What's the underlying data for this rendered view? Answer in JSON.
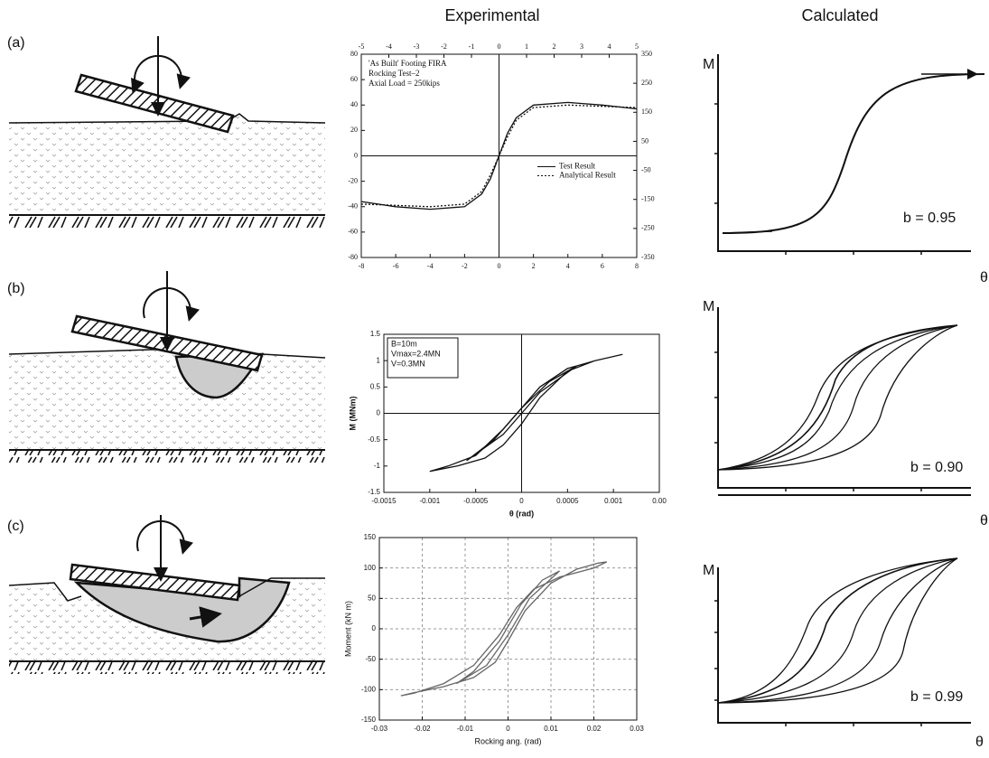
{
  "headers": {
    "experimental": "Experimental",
    "calculated": "Calculated"
  },
  "rows": [
    "(a)",
    "(b)",
    "(c)"
  ],
  "calculated": [
    {
      "y_label": "M",
      "x_label": "θ",
      "annotation": "b = 0.95"
    },
    {
      "y_label": "M",
      "x_label": "θ",
      "annotation": "b = 0.90"
    },
    {
      "y_label": "M",
      "x_label": "θ",
      "annotation": "b = 0.99"
    }
  ],
  "chart_data": [
    {
      "type": "line",
      "zero_lines": true,
      "grid": false,
      "annotation": [
        "'As Built' Footing FIRA",
        "Rocking Test–2",
        "Axial Load = 250kips"
      ],
      "x": [
        -8,
        -6,
        -4,
        -2,
        -1,
        -0.5,
        0,
        0.5,
        1,
        2,
        4,
        6,
        8
      ],
      "series": [
        {
          "name": "Test Result",
          "color": "#111",
          "dash": false,
          "values": [
            -36,
            -40,
            -42,
            -40,
            -30,
            -18,
            0,
            18,
            30,
            40,
            42,
            40,
            37
          ]
        },
        {
          "name": "Analytical Result",
          "color": "#111",
          "dash": true,
          "values": [
            -38,
            -39,
            -40,
            -38,
            -28,
            -15,
            0,
            15,
            28,
            38,
            40,
            39,
            38
          ]
        }
      ],
      "xlim": [
        -8,
        8
      ],
      "xticks": [
        -8,
        -6,
        -4,
        -2,
        0,
        2,
        4,
        6,
        8
      ],
      "x2lim": [
        -5,
        5
      ],
      "x2ticks": [
        -5,
        -4,
        -3,
        -2,
        -1,
        0,
        1,
        2,
        3,
        4,
        5
      ],
      "ylim": [
        -80,
        80
      ],
      "yticks": [
        -80,
        -60,
        -40,
        -20,
        0,
        20,
        40,
        60,
        80
      ],
      "y2lim": [
        -350,
        350
      ],
      "y2ticks": [
        -350,
        -250,
        -150,
        -50,
        50,
        150,
        250,
        350
      ]
    },
    {
      "type": "line",
      "zero_lines": true,
      "grid": false,
      "annotation": [
        "B=10m",
        "Vmax=2.4MN",
        "V=0.3MN"
      ],
      "x_label": "θ (rad)",
      "y_label": "M (MNm)",
      "series": [
        {
          "color": "#111",
          "dash": false,
          "x": [
            -0.001,
            -0.0007,
            -0.0004,
            -0.0002,
            0,
            0.0002,
            0.0005,
            0.0008,
            0.0011,
            0.0008,
            0.0005,
            0.0002,
            0,
            -0.0002,
            -0.0005,
            -0.0008,
            -0.001
          ],
          "values": [
            -1.1,
            -1,
            -0.85,
            -0.6,
            -0.2,
            0.3,
            0.8,
            1,
            1.12,
            1,
            0.85,
            0.5,
            0.1,
            -0.3,
            -0.8,
            -1,
            -1.1
          ]
        },
        {
          "color": "#111",
          "dash": false,
          "x": [
            -0.0006,
            -0.0002,
            0,
            0.0002,
            0.0006,
            0.0003,
            0,
            -0.0003,
            -0.0006
          ],
          "values": [
            -0.9,
            -0.4,
            0,
            0.4,
            0.9,
            0.6,
            0.1,
            -0.5,
            -0.9
          ]
        }
      ],
      "xlim": [
        -0.0015,
        0.0015
      ],
      "xticks": [
        -0.0015,
        -0.001,
        -0.0005,
        0,
        0.0005,
        0.001,
        {
          "value": 0.0015,
          "label": "0.00"
        }
      ],
      "ylim": [
        -1.5,
        1.5
      ],
      "yticks": [
        -1.5,
        -1,
        -0.5,
        0,
        0.5,
        1,
        1.5
      ]
    },
    {
      "type": "line",
      "zero_lines": false,
      "grid": true,
      "x_label": "Rocking ang. (rad)",
      "y_label": "Moment (kN m)",
      "series": [
        {
          "color": "#666",
          "dash": false,
          "x": [
            -0.025,
            -0.022,
            -0.015,
            -0.008,
            -0.003,
            0,
            0.004,
            0.01,
            0.016,
            0.021,
            0.023,
            0.02,
            0.012,
            0.006,
            0.002,
            -0.002,
            -0.008,
            -0.015,
            -0.022,
            -0.025
          ],
          "values": [
            -110,
            -105,
            -95,
            -80,
            -55,
            -20,
            30,
            75,
            98,
            108,
            110,
            100,
            85,
            65,
            35,
            -10,
            -60,
            -90,
            -106,
            -110
          ]
        },
        {
          "color": "#666",
          "dash": false,
          "x": [
            -0.012,
            -0.005,
            0,
            0.005,
            0.012,
            0.008,
            0.003,
            -0.002,
            -0.008,
            -0.012
          ],
          "values": [
            -90,
            -60,
            -10,
            50,
            95,
            80,
            40,
            -20,
            -70,
            -90
          ]
        }
      ],
      "xlim": [
        -0.03,
        0.03
      ],
      "xticks": [
        -0.03,
        -0.02,
        -0.01,
        0,
        0.01,
        0.02,
        0.03
      ],
      "ylim": [
        -150,
        150
      ],
      "yticks": [
        -150,
        -100,
        -50,
        0,
        50,
        100,
        150
      ]
    }
  ]
}
